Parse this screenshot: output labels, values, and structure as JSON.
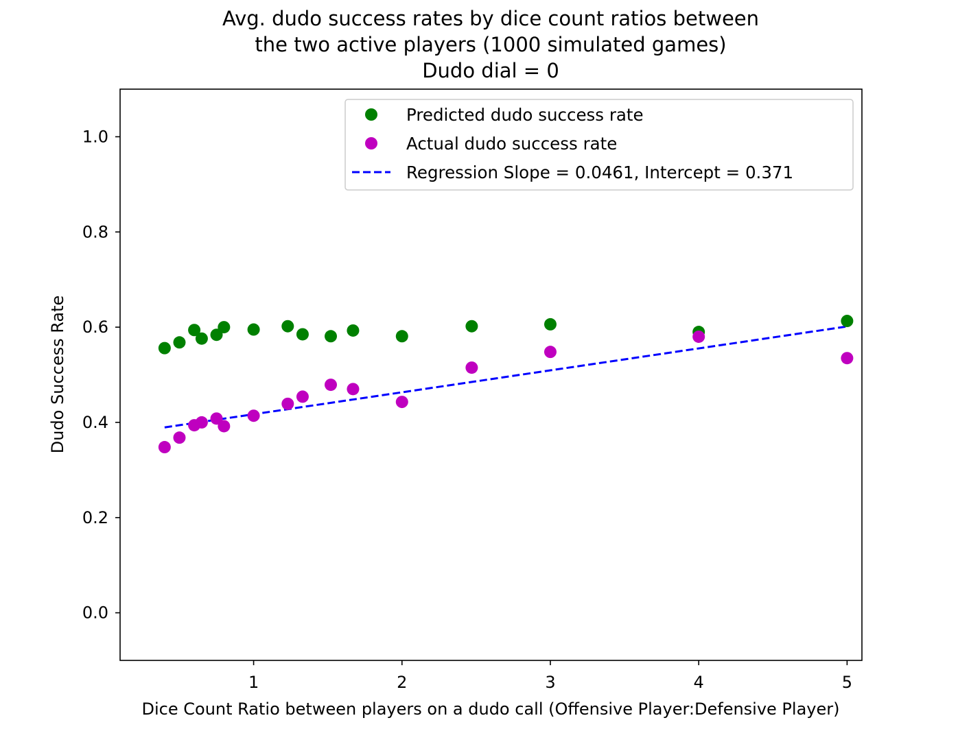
{
  "chart_data": {
    "type": "scatter",
    "title_lines": [
      "Avg. dudo success rates by dice count ratios between",
      "the two active players (1000 simulated games)",
      "Dudo dial = 0"
    ],
    "xlabel": "Dice Count Ratio between players on a dudo call (Offensive Player:Defensive Player)",
    "ylabel": "Dudo Success Rate",
    "xlim": [
      0.1,
      5.1
    ],
    "ylim": [
      -0.1,
      1.1
    ],
    "xticks": [
      1,
      2,
      3,
      4,
      5
    ],
    "xtick_labels": [
      "1",
      "2",
      "3",
      "4",
      "5"
    ],
    "yticks": [
      0.0,
      0.2,
      0.4,
      0.6,
      0.8,
      1.0
    ],
    "ytick_labels": [
      "0.0",
      "0.2",
      "0.4",
      "0.6",
      "0.8",
      "1.0"
    ],
    "grid": false,
    "legend_position": "top-right",
    "x": [
      0.4,
      0.5,
      0.6,
      0.65,
      0.75,
      0.8,
      1.0,
      1.23,
      1.33,
      1.52,
      1.67,
      2.0,
      2.47,
      3.0,
      4.0,
      5.0
    ],
    "series": [
      {
        "name": "Predicted dudo success rate",
        "color": "#008000",
        "marker": "circle",
        "values": [
          0.556,
          0.568,
          0.594,
          0.576,
          0.584,
          0.6,
          0.595,
          0.602,
          0.585,
          0.581,
          0.593,
          0.581,
          0.602,
          0.606,
          0.59,
          0.613
        ]
      },
      {
        "name": "Actual dudo success rate",
        "color": "#bf00bf",
        "marker": "circle",
        "values": [
          0.348,
          0.368,
          0.394,
          0.4,
          0.408,
          0.392,
          0.414,
          0.439,
          0.454,
          0.479,
          0.47,
          0.443,
          0.515,
          0.548,
          0.58,
          0.535
        ]
      }
    ],
    "regression": {
      "name": "Regression Slope = 0.0461, Intercept = 0.371",
      "color": "#0000ff",
      "style": "dashed",
      "slope": 0.0461,
      "intercept": 0.371,
      "x_range": [
        0.4,
        5.0
      ]
    }
  }
}
